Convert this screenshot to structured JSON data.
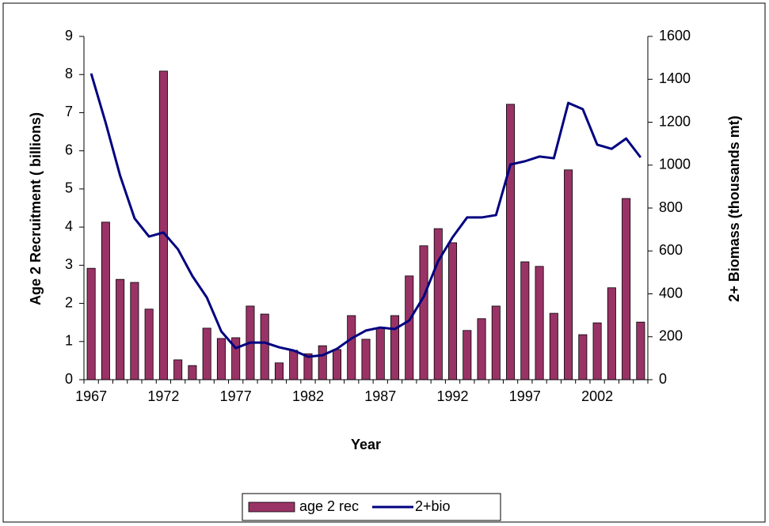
{
  "chart_data": {
    "type": "bar-line",
    "x_label": "Year",
    "y_label": "Age 2 Recruitment ( billions)",
    "y2_label": "2+ Biomass (thousands mt)",
    "categories": [
      "1967",
      null,
      null,
      null,
      null,
      "1972",
      null,
      null,
      null,
      null,
      "1977",
      null,
      null,
      null,
      null,
      "1982",
      null,
      null,
      null,
      null,
      "1987",
      null,
      null,
      null,
      null,
      "1992",
      null,
      null,
      null,
      null,
      "1997",
      null,
      null,
      null,
      null,
      "2002",
      null,
      null,
      null
    ],
    "series": [
      {
        "name": "age 2 rec",
        "type": "bar",
        "color": "#993366",
        "axis": "y",
        "values": [
          2.92,
          4.13,
          2.63,
          2.55,
          1.85,
          8.09,
          0.52,
          0.37,
          1.35,
          1.08,
          1.1,
          1.93,
          1.72,
          0.44,
          0.77,
          0.68,
          0.89,
          0.79,
          1.68,
          1.06,
          1.35,
          1.68,
          2.72,
          3.51,
          3.96,
          3.59,
          1.29,
          1.6,
          1.93,
          7.22,
          3.09,
          2.97,
          1.74,
          5.5,
          1.18,
          1.49,
          2.41,
          4.75,
          1.51
        ]
      },
      {
        "name": "2+bio",
        "type": "line",
        "color": "#000080",
        "axis": "y2",
        "values": [
          1427,
          1198,
          951,
          752,
          667,
          686,
          608,
          483,
          383,
          225,
          147,
          173,
          173,
          151,
          136,
          107,
          114,
          144,
          192,
          229,
          243,
          236,
          276,
          387,
          553,
          664,
          756,
          756,
          767,
          1003,
          1018,
          1040,
          1032,
          1290,
          1261,
          1095,
          1076,
          1124,
          1036
        ]
      }
    ],
    "ylim": [
      0,
      9
    ],
    "yticks": [
      0,
      1,
      2,
      3,
      4,
      5,
      6,
      7,
      8,
      9
    ],
    "y2lim": [
      0,
      1600
    ],
    "y2ticks": [
      0,
      200,
      400,
      600,
      800,
      1000,
      1200,
      1400,
      1600
    ],
    "legend": "bottom"
  }
}
